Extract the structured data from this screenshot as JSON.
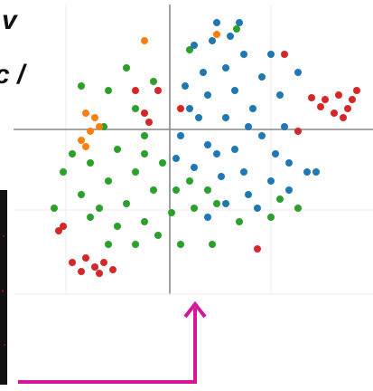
{
  "chart_data": {
    "type": "scatter",
    "annotations": [
      "v",
      "c /"
    ],
    "xlim": [
      -1.88,
      2.25
    ],
    "ylim": [
      -2.89,
      1.43
    ],
    "xticks": [
      -1.15,
      0,
      1.12
    ],
    "yticks": [
      -1.82,
      -0.89,
      0
    ],
    "grid": true,
    "series": [
      {
        "color": "#2ca02c",
        "x": [
          -0.98,
          -0.68,
          -0.48,
          -0.38,
          -0.28,
          -0.58,
          -0.88,
          -1.18,
          -0.68,
          -0.38,
          -0.08,
          0.22,
          0.42,
          -0.18,
          -0.48,
          -0.78,
          -0.98,
          -0.58,
          -0.28,
          0.02,
          0.27,
          0.52,
          -0.13,
          -0.38,
          0.12,
          0.47,
          -0.68,
          -0.88,
          -1.08,
          0.07,
          -0.28,
          0.77,
          1.12,
          1.22,
          1.42,
          0.22,
          0.74,
          -0.18,
          -0.73,
          -1.28
        ],
        "values": [
          0.48,
          0.43,
          0.68,
          0.23,
          -0.07,
          -0.22,
          -0.37,
          -0.47,
          -0.57,
          -0.47,
          -0.37,
          -0.57,
          -0.67,
          -0.67,
          -0.82,
          -0.87,
          -0.72,
          -1.07,
          -1.02,
          -0.92,
          -0.87,
          -0.82,
          -1.17,
          -1.27,
          -1.27,
          -1.27,
          -1.27,
          -0.97,
          -0.27,
          -0.67,
          -0.27,
          -1.02,
          -0.97,
          -0.77,
          -0.87,
          0.88,
          1.11,
          0.53,
          0.03,
          -0.87
        ]
      },
      {
        "color": "#1f77b4",
        "x": [
          0.27,
          0.47,
          0.67,
          0.82,
          0.62,
          0.37,
          0.17,
          0.42,
          0.72,
          1.02,
          1.22,
          0.92,
          0.62,
          0.32,
          0.12,
          0.42,
          0.72,
          1.02,
          1.27,
          1.42,
          1.32,
          1.12,
          0.82,
          0.57,
          0.27,
          0.62,
          0.87,
          0.42,
          1.52,
          0.07,
          0.52,
          0.77,
          1.12,
          0.22,
          0.87,
          0.52,
          1.17,
          0.97,
          1.32,
          1.62
        ],
        "values": [
          0.93,
          0.98,
          1.03,
          0.83,
          0.68,
          0.63,
          0.48,
          0.38,
          0.43,
          0.58,
          0.38,
          0.23,
          0.13,
          0.13,
          -0.07,
          -0.17,
          -0.22,
          -0.07,
          0.03,
          0.63,
          -0.37,
          -0.57,
          -0.47,
          -0.52,
          -0.42,
          -0.82,
          -0.72,
          -0.97,
          -0.47,
          -0.32,
          1.18,
          1.18,
          0.83,
          0.23,
          0.03,
          -0.27,
          -0.27,
          -0.87,
          -0.67,
          -0.47
        ]
      },
      {
        "color": "#ff7f0e",
        "x": [
          -0.93,
          -0.83,
          -0.88,
          -0.98,
          -0.78,
          -0.93,
          0.52,
          -0.28
        ],
        "values": [
          0.18,
          0.13,
          -0.02,
          -0.12,
          0.03,
          -0.19,
          1.05,
          0.98
        ]
      },
      {
        "color": "#d62728",
        "x": [
          1.57,
          1.72,
          1.87,
          2.02,
          1.97,
          1.82,
          1.67,
          2.07,
          1.92,
          1.42,
          -0.13,
          -0.23,
          0.12,
          -0.38,
          1.27,
          -1.08,
          -0.93,
          -0.83,
          -0.73,
          -0.98,
          -0.78,
          -0.63,
          -1.23,
          -1.18,
          0.97,
          -0.28
        ],
        "values": [
          0.35,
          0.33,
          0.38,
          0.33,
          0.23,
          0.18,
          0.25,
          0.43,
          0.13,
          -0.02,
          0.43,
          0.08,
          0.23,
          0.43,
          0.83,
          -1.47,
          -1.42,
          -1.52,
          -1.47,
          -1.57,
          -1.59,
          -1.55,
          -1.12,
          -1.07,
          -1.32,
          0.18
        ]
      }
    ]
  }
}
